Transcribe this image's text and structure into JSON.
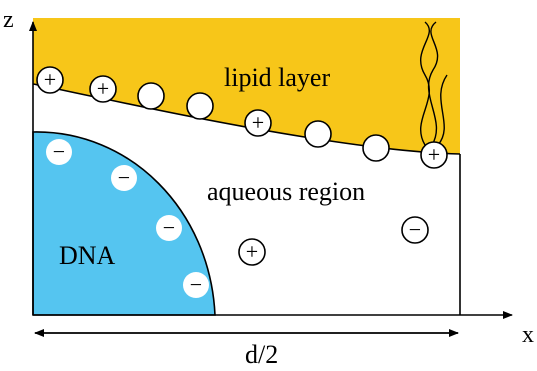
{
  "labels": {
    "z_axis": "z",
    "x_axis": "x",
    "lipid": "lipid layer",
    "aqueous": "aqueous region",
    "dna": "DNA",
    "width": "d/2"
  },
  "colors": {
    "lipid_fill": "#F7C619",
    "dna_fill": "#55C5F0",
    "stroke": "#000000",
    "background": "#FFFFFF"
  },
  "symbols": {
    "plus": "+",
    "minus": "−"
  }
}
